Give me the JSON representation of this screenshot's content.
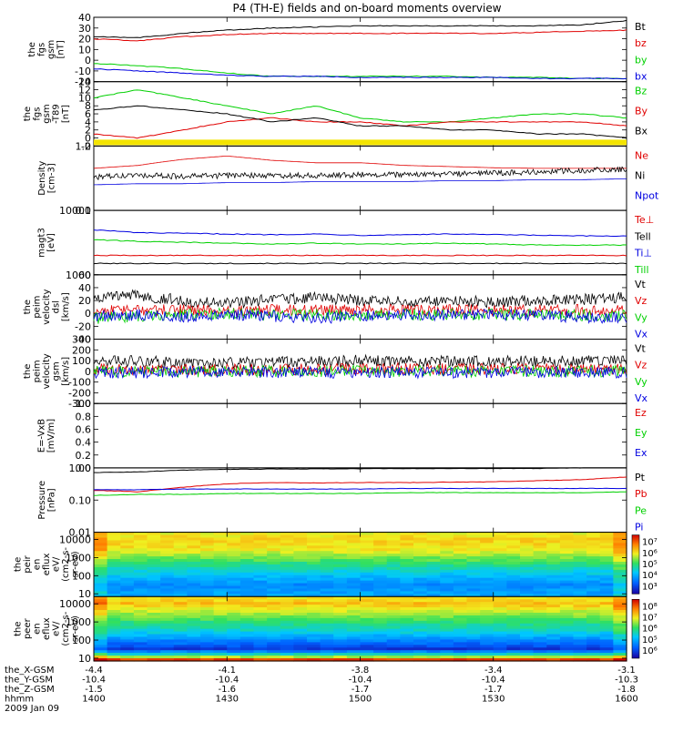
{
  "title": "P4 (TH-E) fields and on-board moments overview",
  "time_axis": {
    "rows": [
      {
        "label": "the_X-GSM",
        "values": [
          "-4.4",
          "-4.1",
          "-3.8",
          "-3.4",
          "-3.1"
        ]
      },
      {
        "label": "the_Y-GSM",
        "values": [
          "-10.4",
          "-10.4",
          "-10.4",
          "-10.4",
          "-10.3"
        ]
      },
      {
        "label": "the_Z-GSM",
        "values": [
          "-1.5",
          "-1.6",
          "-1.7",
          "-1.7",
          "-1.8"
        ]
      },
      {
        "label": "hhmm",
        "values": [
          "1400",
          "1430",
          "1500",
          "1530",
          "1600"
        ]
      }
    ],
    "date": "2009 Jan 09"
  },
  "colors": {
    "black": "#000000",
    "red": "#e00000",
    "green": "#00d000",
    "blue": "#0000e0",
    "yellow": "#f4e400"
  },
  "chart_data": [
    {
      "type": "line",
      "ylabel": [
        "the",
        "fgs",
        "gsm",
        "[nT]"
      ],
      "yticks": [
        "40",
        "30",
        "20",
        "10",
        "0",
        "-10",
        "-20"
      ],
      "ylim": [
        -20,
        40
      ],
      "x": [
        0,
        10,
        20,
        30,
        40,
        50,
        60,
        70,
        80,
        90,
        100,
        110,
        120
      ],
      "series": [
        {
          "name": "Bt",
          "color": "black",
          "values": [
            22,
            21,
            25,
            28,
            30,
            31,
            32,
            32,
            32,
            32,
            32,
            33,
            37
          ]
        },
        {
          "name": "bz",
          "color": "red",
          "values": [
            20,
            18,
            22,
            24,
            25,
            25,
            25,
            25,
            25,
            25,
            26,
            27,
            28
          ]
        },
        {
          "name": "by",
          "color": "green",
          "values": [
            -3,
            -5,
            -8,
            -12,
            -15,
            -15,
            -15,
            -15,
            -15,
            -16,
            -16,
            -17,
            -17
          ]
        },
        {
          "name": "bx",
          "color": "blue",
          "values": [
            -8,
            -10,
            -12,
            -14,
            -15,
            -15,
            -16,
            -16,
            -16,
            -16,
            -17,
            -17,
            -17
          ]
        }
      ]
    },
    {
      "type": "line",
      "ylabel": [
        "the",
        "fgs",
        "gsm",
        "-T89",
        "[nT]"
      ],
      "yticks": [
        "14",
        "12",
        "10",
        "8",
        "6",
        "4",
        "2",
        "0",
        "-2"
      ],
      "ylim": [
        -2,
        14
      ],
      "x": [
        0,
        10,
        20,
        30,
        40,
        50,
        60,
        70,
        80,
        90,
        100,
        110,
        120
      ],
      "series": [
        {
          "name": "Bz",
          "color": "green",
          "values": [
            10,
            12,
            10,
            8,
            6,
            8,
            5,
            4,
            4,
            5,
            6,
            6,
            5
          ]
        },
        {
          "name": "By",
          "color": "red",
          "values": [
            1,
            0,
            2,
            4,
            5,
            4,
            4,
            3,
            4,
            4,
            4,
            4,
            3
          ]
        },
        {
          "name": "Bx",
          "color": "black",
          "values": [
            7,
            8,
            7,
            6,
            4,
            5,
            3,
            3,
            2,
            2,
            1,
            1,
            0
          ]
        }
      ]
    },
    {
      "type": "line",
      "ylabel": [
        "Density",
        "[cm-3]"
      ],
      "yticks": [
        "1.0",
        "0.1"
      ],
      "ylim": [
        0.1,
        1.0
      ],
      "scale": "log",
      "x": [
        0,
        10,
        20,
        30,
        40,
        50,
        60,
        70,
        80,
        90,
        100,
        110,
        120
      ],
      "series": [
        {
          "name": "Ne",
          "color": "red",
          "values": [
            0.45,
            0.5,
            0.62,
            0.7,
            0.6,
            0.55,
            0.55,
            0.5,
            0.48,
            0.46,
            0.45,
            0.45,
            0.45
          ]
        },
        {
          "name": "Ni",
          "color": "black",
          "values": [
            0.33,
            0.35,
            0.34,
            0.35,
            0.35,
            0.35,
            0.36,
            0.36,
            0.37,
            0.38,
            0.4,
            0.42,
            0.44
          ]
        },
        {
          "name": "Npot",
          "color": "blue",
          "values": [
            0.25,
            0.26,
            0.26,
            0.27,
            0.27,
            0.28,
            0.28,
            0.28,
            0.29,
            0.29,
            0.3,
            0.3,
            0.31
          ]
        }
      ]
    },
    {
      "type": "line",
      "ylabel": [
        "magt3",
        "[eV]"
      ],
      "yticks": [
        "10000",
        "1000"
      ],
      "ylim": [
        1000,
        10000
      ],
      "scale": "log",
      "x": [
        0,
        10,
        20,
        30,
        40,
        50,
        60,
        70,
        80,
        90,
        100,
        110,
        120
      ],
      "series": [
        {
          "name": "Te⊥",
          "color": "red",
          "values": [
            2000,
            2000,
            2000,
            2000,
            2000,
            2000,
            2000,
            2000,
            2000,
            2000,
            2000,
            2000,
            2000
          ]
        },
        {
          "name": "Tell",
          "color": "black",
          "values": [
            1500,
            1500,
            1500,
            1500,
            1500,
            1500,
            1500,
            1500,
            1500,
            1500,
            1500,
            1500,
            1500
          ]
        },
        {
          "name": "Ti⊥",
          "color": "blue",
          "values": [
            5000,
            4500,
            4400,
            4300,
            4200,
            4300,
            4100,
            4200,
            4300,
            4200,
            4100,
            4000,
            4000
          ]
        },
        {
          "name": "Till",
          "color": "green",
          "values": [
            3500,
            3300,
            3200,
            3100,
            3000,
            3100,
            3000,
            3000,
            3100,
            3000,
            2900,
            2900,
            2900
          ]
        }
      ]
    },
    {
      "type": "line",
      "ylabel": [
        "the",
        "peim",
        "velocity",
        "dsl",
        "[km/s]"
      ],
      "yticks": [
        "60",
        "40",
        "20",
        "0",
        "-20",
        "-40"
      ],
      "ylim": [
        -40,
        60
      ],
      "x": [
        0,
        10,
        20,
        30,
        40,
        50,
        60,
        70,
        80,
        90,
        100,
        110,
        120
      ],
      "series": [
        {
          "name": "Vt",
          "color": "black",
          "values": [
            25,
            28,
            20,
            15,
            22,
            25,
            20,
            18,
            20,
            18,
            20,
            22,
            24
          ]
        },
        {
          "name": "Vz",
          "color": "red",
          "values": [
            5,
            5,
            6,
            4,
            5,
            5,
            6,
            5,
            5,
            5,
            5,
            5,
            5
          ]
        },
        {
          "name": "Vy",
          "color": "green",
          "values": [
            -8,
            -4,
            -2,
            0,
            -2,
            -2,
            -3,
            -2,
            -2,
            -2,
            -2,
            -3,
            -3
          ]
        },
        {
          "name": "Vx",
          "color": "blue",
          "values": [
            -5,
            -2,
            -5,
            -3,
            -4,
            -8,
            -3,
            -2,
            -3,
            -2,
            -3,
            -6,
            -8
          ]
        }
      ]
    },
    {
      "type": "line",
      "ylabel": [
        "the",
        "peim",
        "velocity",
        "gsm",
        "[km/s]"
      ],
      "yticks": [
        "300",
        "200",
        "100",
        "0",
        "-100",
        "-200",
        "-300"
      ],
      "ylim": [
        -300,
        300
      ],
      "x": [
        0,
        10,
        20,
        30,
        40,
        50,
        60,
        70,
        80,
        90,
        100,
        110,
        120
      ],
      "series": [
        {
          "name": "Vt",
          "color": "black",
          "values": [
            90,
            95,
            80,
            80,
            85,
            90,
            100,
            95,
            90,
            95,
            90,
            95,
            100
          ]
        },
        {
          "name": "Vz",
          "color": "red",
          "values": [
            20,
            20,
            15,
            15,
            20,
            20,
            20,
            25,
            20,
            20,
            20,
            20,
            20
          ]
        },
        {
          "name": "Vy",
          "color": "green",
          "values": [
            0,
            0,
            -5,
            0,
            0,
            0,
            5,
            0,
            0,
            0,
            0,
            0,
            0
          ]
        },
        {
          "name": "Vx",
          "color": "blue",
          "values": [
            -10,
            -10,
            -5,
            -5,
            -10,
            -10,
            -10,
            -10,
            -10,
            -10,
            -10,
            -10,
            -10
          ]
        }
      ]
    },
    {
      "type": "line",
      "ylabel": [
        "E=-VxB",
        "[mV/m]"
      ],
      "yticks": [
        "1.0",
        "0.8",
        "0.6",
        "0.4",
        "0.2",
        "0.0"
      ],
      "ylim": [
        0,
        1
      ],
      "legend": [
        {
          "name": "Ez",
          "color": "red"
        },
        {
          "name": "Ey",
          "color": "green"
        },
        {
          "name": "Ex",
          "color": "blue"
        }
      ]
    },
    {
      "type": "line",
      "ylabel": [
        "Pressure",
        "[nPa]"
      ],
      "yticks": [
        "1.00",
        "0.10",
        "0.01"
      ],
      "ylim": [
        0.01,
        1.0
      ],
      "scale": "log",
      "x": [
        0,
        10,
        20,
        30,
        40,
        50,
        60,
        70,
        80,
        90,
        100,
        110,
        120
      ],
      "series": [
        {
          "name": "Pt",
          "color": "black",
          "values": [
            0.72,
            0.75,
            0.85,
            0.9,
            0.92,
            0.93,
            0.94,
            0.95,
            0.95,
            0.96,
            0.96,
            1.0,
            1.05
          ]
        },
        {
          "name": "Pb",
          "color": "red",
          "values": [
            0.2,
            0.18,
            0.25,
            0.32,
            0.35,
            0.34,
            0.35,
            0.35,
            0.36,
            0.37,
            0.4,
            0.43,
            0.52
          ]
        },
        {
          "name": "Pe",
          "color": "green",
          "values": [
            0.14,
            0.15,
            0.15,
            0.16,
            0.16,
            0.16,
            0.16,
            0.17,
            0.17,
            0.17,
            0.17,
            0.17,
            0.18
          ]
        },
        {
          "name": "Pi",
          "color": "blue",
          "values": [
            0.21,
            0.21,
            0.22,
            0.22,
            0.22,
            0.22,
            0.22,
            0.23,
            0.23,
            0.23,
            0.23,
            0.23,
            0.23
          ]
        }
      ]
    },
    {
      "type": "heatmap",
      "ylabel": [
        "the",
        "peir",
        "en",
        "eflux",
        "eV/",
        "(cm2-s-",
        "sr-eV)"
      ],
      "yticks": [
        "10000",
        "1000",
        "100",
        "10"
      ],
      "colorbar_ticks": [
        "10⁷",
        "10⁶",
        "10⁵",
        "10⁴",
        "10³"
      ],
      "energy_profile": [
        {
          "energy": 10,
          "level": 0.3
        },
        {
          "energy": 30,
          "level": 0.25
        },
        {
          "energy": 100,
          "level": 0.35
        },
        {
          "energy": 300,
          "level": 0.45
        },
        {
          "energy": 1000,
          "level": 0.58
        },
        {
          "energy": 3000,
          "level": 0.7
        },
        {
          "energy": 10000,
          "level": 0.72
        },
        {
          "energy": 20000,
          "level": 0.68
        }
      ]
    },
    {
      "type": "heatmap",
      "ylabel": [
        "the",
        "peer",
        "en",
        "eflux",
        "eV/",
        "(cm2-s-",
        "sr-eV)"
      ],
      "yticks": [
        "10000",
        "1000",
        "100",
        "10"
      ],
      "colorbar_ticks": [
        "10⁸",
        "10⁷",
        "10⁶",
        "10⁵",
        "10⁶"
      ],
      "energy_profile": [
        {
          "energy": 8,
          "level": 0.95
        },
        {
          "energy": 12,
          "level": 0.6
        },
        {
          "energy": 30,
          "level": 0.1
        },
        {
          "energy": 100,
          "level": 0.25
        },
        {
          "energy": 300,
          "level": 0.4
        },
        {
          "energy": 1000,
          "level": 0.5
        },
        {
          "energy": 3000,
          "level": 0.62
        },
        {
          "energy": 10000,
          "level": 0.75
        },
        {
          "energy": 20000,
          "level": 0.7
        }
      ]
    }
  ]
}
